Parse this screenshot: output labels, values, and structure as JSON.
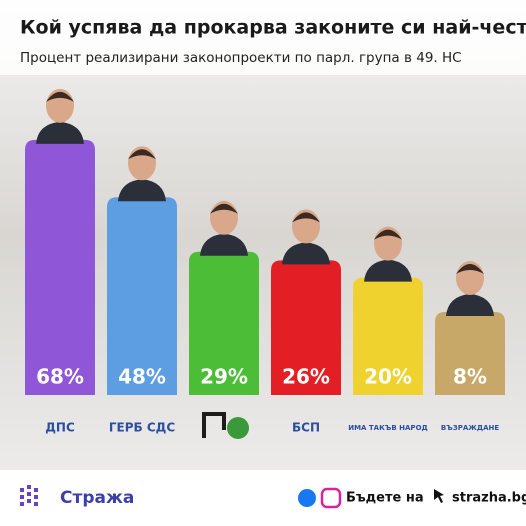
{
  "chart_data": {
    "type": "bar",
    "title": "Кой успява да прокарва законите си най-често?",
    "subtitle": "Процент реализирани законопроекти по парл. група в 49. НС",
    "categories": [
      "ДПС",
      "ГЕРБ СДС",
      null,
      "БСП",
      "ИМА ТАКЪВ НАРОД",
      "ВЪЗРАЖДАНЕ"
    ],
    "values": [
      68,
      48,
      29,
      26,
      20,
      8
    ],
    "value_labels": [
      "68%",
      "48%",
      "29%",
      "26%",
      "20%",
      "8%"
    ],
    "colors": [
      "#8f57d8",
      "#5d9ee2",
      "#4cbd36",
      "#e31e24",
      "#f0d22e",
      "#c7a868"
    ]
  },
  "footer": {
    "brand": "Стража",
    "cta": "Бъдете на",
    "site": "strazha.bg"
  }
}
